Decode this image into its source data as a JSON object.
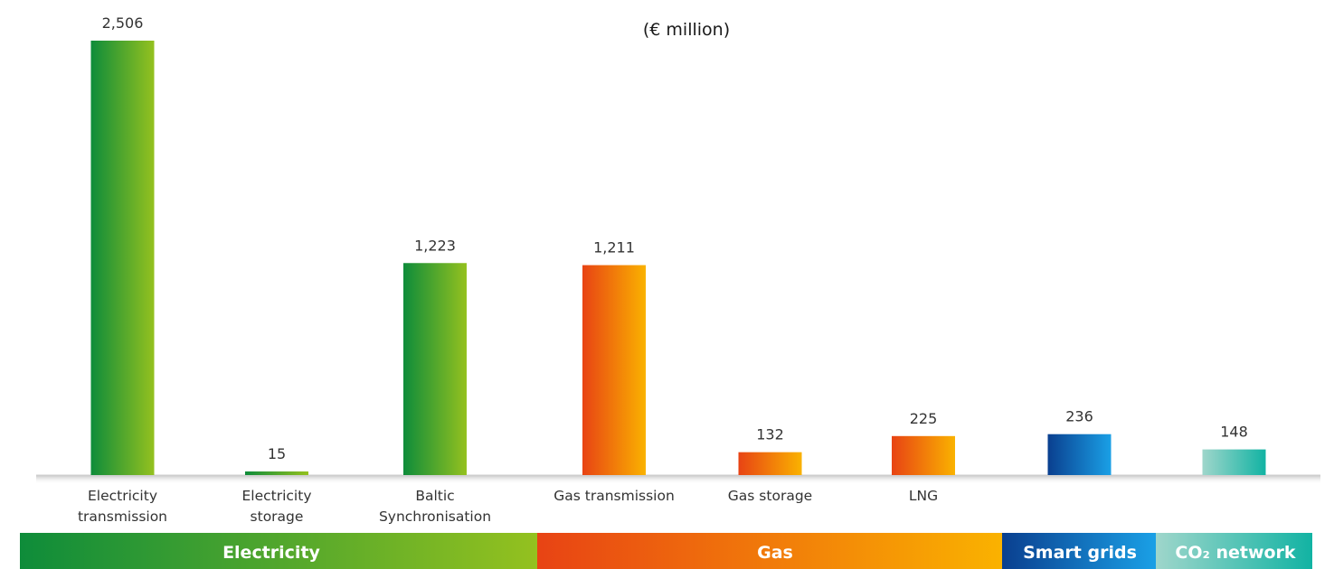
{
  "chart_data": {
    "type": "bar",
    "title": "(€ million)",
    "categories": [
      [
        "Electricity",
        "transmission"
      ],
      [
        "Electricity",
        "storage"
      ],
      [
        "Baltic",
        "Synchronisation"
      ],
      [
        "Gas transmission"
      ],
      [
        "Gas storage"
      ],
      [
        "LNG"
      ],
      [],
      []
    ],
    "values": [
      2506,
      15,
      1223,
      1211,
      132,
      225,
      236,
      148
    ],
    "value_labels": [
      "2,506",
      "15",
      "1,223",
      "1,211",
      "132",
      "225",
      "236",
      "148"
    ],
    "groups": [
      "electricity",
      "electricity",
      "electricity",
      "gas",
      "gas",
      "gas",
      "smart",
      "co2"
    ],
    "ylim": [
      0,
      2506
    ],
    "grid": false,
    "legend": "none",
    "bands": [
      {
        "key": "electricity",
        "label": "Electricity"
      },
      {
        "key": "gas",
        "label": "Gas"
      },
      {
        "key": "smart",
        "label": "Smart grids"
      },
      {
        "key": "co2",
        "label": "CO₂ network"
      }
    ],
    "colors": {
      "electricity": [
        "#0e8c3a",
        "#94c11f"
      ],
      "gas": [
        "#e84314",
        "#fab200"
      ],
      "smart": [
        "#0a3f8f",
        "#1aa0e6"
      ],
      "co2": [
        "#9fd6cb",
        "#12b3a3"
      ]
    }
  }
}
